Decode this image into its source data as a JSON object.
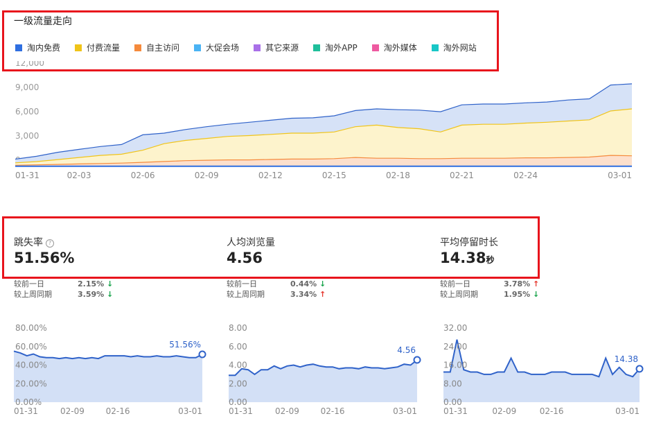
{
  "section_title": "一级流量走向",
  "legend": [
    {
      "label": "淘内免费",
      "color": "#2f6fe0"
    },
    {
      "label": "付费流量",
      "color": "#f0c419"
    },
    {
      "label": "自主访问",
      "color": "#f58a3c"
    },
    {
      "label": "大促会场",
      "color": "#4ab3f4"
    },
    {
      "label": "其它来源",
      "color": "#a970e8"
    },
    {
      "label": "淘外APP",
      "color": "#1fbf9b"
    },
    {
      "label": "淘外媒体",
      "color": "#ee5aa0"
    },
    {
      "label": "淘外网站",
      "color": "#18c7c7"
    }
  ],
  "metrics": [
    {
      "label": "跳失率",
      "value": "51.56%",
      "unit": "",
      "cmp_day_label": "较前一日",
      "cmp_day_value": "2.15%",
      "cmp_day_dir": "down",
      "cmp_week_label": "较上周同期",
      "cmp_week_value": "3.59%",
      "cmp_week_dir": "down"
    },
    {
      "label": "人均浏览量",
      "value": "4.56",
      "unit": "",
      "cmp_day_label": "较前一日",
      "cmp_day_value": "0.44%",
      "cmp_day_dir": "down",
      "cmp_week_label": "较上周同期",
      "cmp_week_value": "3.34%",
      "cmp_week_dir": "up"
    },
    {
      "label": "平均停留时长",
      "value": "14.38",
      "unit": "秒",
      "cmp_day_label": "较前一日",
      "cmp_day_value": "3.78%",
      "cmp_day_dir": "up",
      "cmp_week_label": "较上周同期",
      "cmp_week_value": "1.95%",
      "cmp_week_dir": "down"
    }
  ],
  "colors": {
    "line": "#2f62c9",
    "fill": "#d6e2f7",
    "red_box": "#e8141c"
  },
  "chart_data": [
    {
      "type": "area",
      "title": "",
      "stacked": true,
      "x": [
        "01-31",
        "02-01",
        "02-02",
        "02-03",
        "02-04",
        "02-05",
        "02-06",
        "02-07",
        "02-08",
        "02-09",
        "02-10",
        "02-11",
        "02-12",
        "02-13",
        "02-14",
        "02-15",
        "02-16",
        "02-17",
        "02-18",
        "02-19",
        "02-20",
        "02-21",
        "02-22",
        "02-23",
        "02-24",
        "02-25",
        "02-26",
        "02-27",
        "02-28",
        "03-01"
      ],
      "x_ticks": [
        "01-31",
        "02-03",
        "02-06",
        "02-09",
        "02-12",
        "02-15",
        "02-18",
        "02-21",
        "02-24",
        "03-01"
      ],
      "y_ticks": [
        "0",
        "3,000",
        "6,000",
        "9,000",
        "12,000"
      ],
      "ylim": [
        0,
        12000
      ],
      "series": [
        {
          "name": "淘外网站",
          "values": [
            50,
            50,
            50,
            60,
            60,
            60,
            60,
            60,
            60,
            60,
            60,
            60,
            60,
            60,
            60,
            60,
            60,
            60,
            60,
            60,
            60,
            60,
            60,
            60,
            60,
            60,
            60,
            60,
            60,
            60
          ]
        },
        {
          "name": "自主访问",
          "values": [
            100,
            150,
            200,
            250,
            300,
            350,
            450,
            550,
            650,
            700,
            750,
            750,
            800,
            850,
            850,
            900,
            1050,
            950,
            950,
            900,
            900,
            950,
            950,
            950,
            1000,
            1000,
            1050,
            1100,
            1300,
            1250
          ]
        },
        {
          "name": "付费流量",
          "values": [
            300,
            400,
            600,
            800,
            1000,
            1100,
            1500,
            2200,
            2500,
            2700,
            2900,
            3000,
            3100,
            3200,
            3200,
            3300,
            3800,
            4100,
            3800,
            3700,
            3300,
            4100,
            4200,
            4200,
            4300,
            4400,
            4500,
            4600,
            5500,
            5800
          ]
        },
        {
          "name": "淘内免费",
          "values": [
            450,
            650,
            900,
            1000,
            1100,
            1200,
            1900,
            1300,
            1350,
            1450,
            1500,
            1650,
            1750,
            1850,
            1900,
            2000,
            2000,
            2000,
            2200,
            2300,
            2500,
            2500,
            2500,
            2500,
            2500,
            2500,
            2600,
            2600,
            3200,
            3100
          ]
        }
      ]
    },
    {
      "type": "area",
      "title": "跳失率",
      "x": [
        "01-31",
        "02-01",
        "02-02",
        "02-03",
        "02-04",
        "02-05",
        "02-06",
        "02-07",
        "02-08",
        "02-09",
        "02-10",
        "02-11",
        "02-12",
        "02-13",
        "02-14",
        "02-15",
        "02-16",
        "02-17",
        "02-18",
        "02-19",
        "02-20",
        "02-21",
        "02-22",
        "02-23",
        "02-24",
        "02-25",
        "02-26",
        "02-27",
        "02-28",
        "03-01"
      ],
      "x_ticks": [
        "01-31",
        "02-09",
        "02-16",
        "03-01"
      ],
      "y_ticks": [
        "0.00%",
        "20.00%",
        "40.00%",
        "60.00%",
        "80.00%"
      ],
      "ylim": [
        0,
        80
      ],
      "values": [
        55,
        53,
        50,
        52,
        49,
        48,
        48,
        47,
        48,
        47,
        48,
        47,
        48,
        47,
        50,
        50,
        50,
        50,
        49,
        50,
        49,
        49,
        50,
        49,
        49,
        50,
        49,
        48,
        48,
        51.56
      ],
      "end_label": "51.56%"
    },
    {
      "type": "area",
      "title": "人均浏览量",
      "x": [
        "01-31",
        "02-01",
        "02-02",
        "02-03",
        "02-04",
        "02-05",
        "02-06",
        "02-07",
        "02-08",
        "02-09",
        "02-10",
        "02-11",
        "02-12",
        "02-13",
        "02-14",
        "02-15",
        "02-16",
        "02-17",
        "02-18",
        "02-19",
        "02-20",
        "02-21",
        "02-22",
        "02-23",
        "02-24",
        "02-25",
        "02-26",
        "02-27",
        "02-28",
        "03-01"
      ],
      "x_ticks": [
        "01-31",
        "02-09",
        "02-16",
        "03-01"
      ],
      "y_ticks": [
        "0.00",
        "2.00",
        "4.00",
        "6.00",
        "8.00"
      ],
      "ylim": [
        0,
        8
      ],
      "values": [
        2.9,
        2.9,
        3.6,
        3.5,
        3.0,
        3.5,
        3.5,
        3.9,
        3.6,
        3.9,
        4.0,
        3.8,
        4.0,
        4.1,
        3.9,
        3.8,
        3.8,
        3.6,
        3.7,
        3.7,
        3.6,
        3.8,
        3.7,
        3.7,
        3.6,
        3.7,
        3.8,
        4.1,
        4.0,
        4.56
      ],
      "end_label": "4.56"
    },
    {
      "type": "area",
      "title": "平均停留时长",
      "x": [
        "01-31",
        "02-01",
        "02-02",
        "02-03",
        "02-04",
        "02-05",
        "02-06",
        "02-07",
        "02-08",
        "02-09",
        "02-10",
        "02-11",
        "02-12",
        "02-13",
        "02-14",
        "02-15",
        "02-16",
        "02-17",
        "02-18",
        "02-19",
        "02-20",
        "02-21",
        "02-22",
        "02-23",
        "02-24",
        "02-25",
        "02-26",
        "02-27",
        "02-28",
        "03-01"
      ],
      "x_ticks": [
        "01-31",
        "02-09",
        "02-16",
        "03-01"
      ],
      "y_ticks": [
        "0.00",
        "8.00",
        "16.00",
        "24.00",
        "32.00"
      ],
      "ylim": [
        0,
        32
      ],
      "values": [
        13,
        13,
        27,
        14,
        13,
        13,
        12,
        12,
        13,
        13,
        19,
        13,
        13,
        12,
        12,
        12,
        13,
        13,
        13,
        12,
        12,
        12,
        12,
        11,
        19,
        12,
        15,
        12,
        11,
        14.38
      ],
      "end_label": "14.38"
    }
  ]
}
